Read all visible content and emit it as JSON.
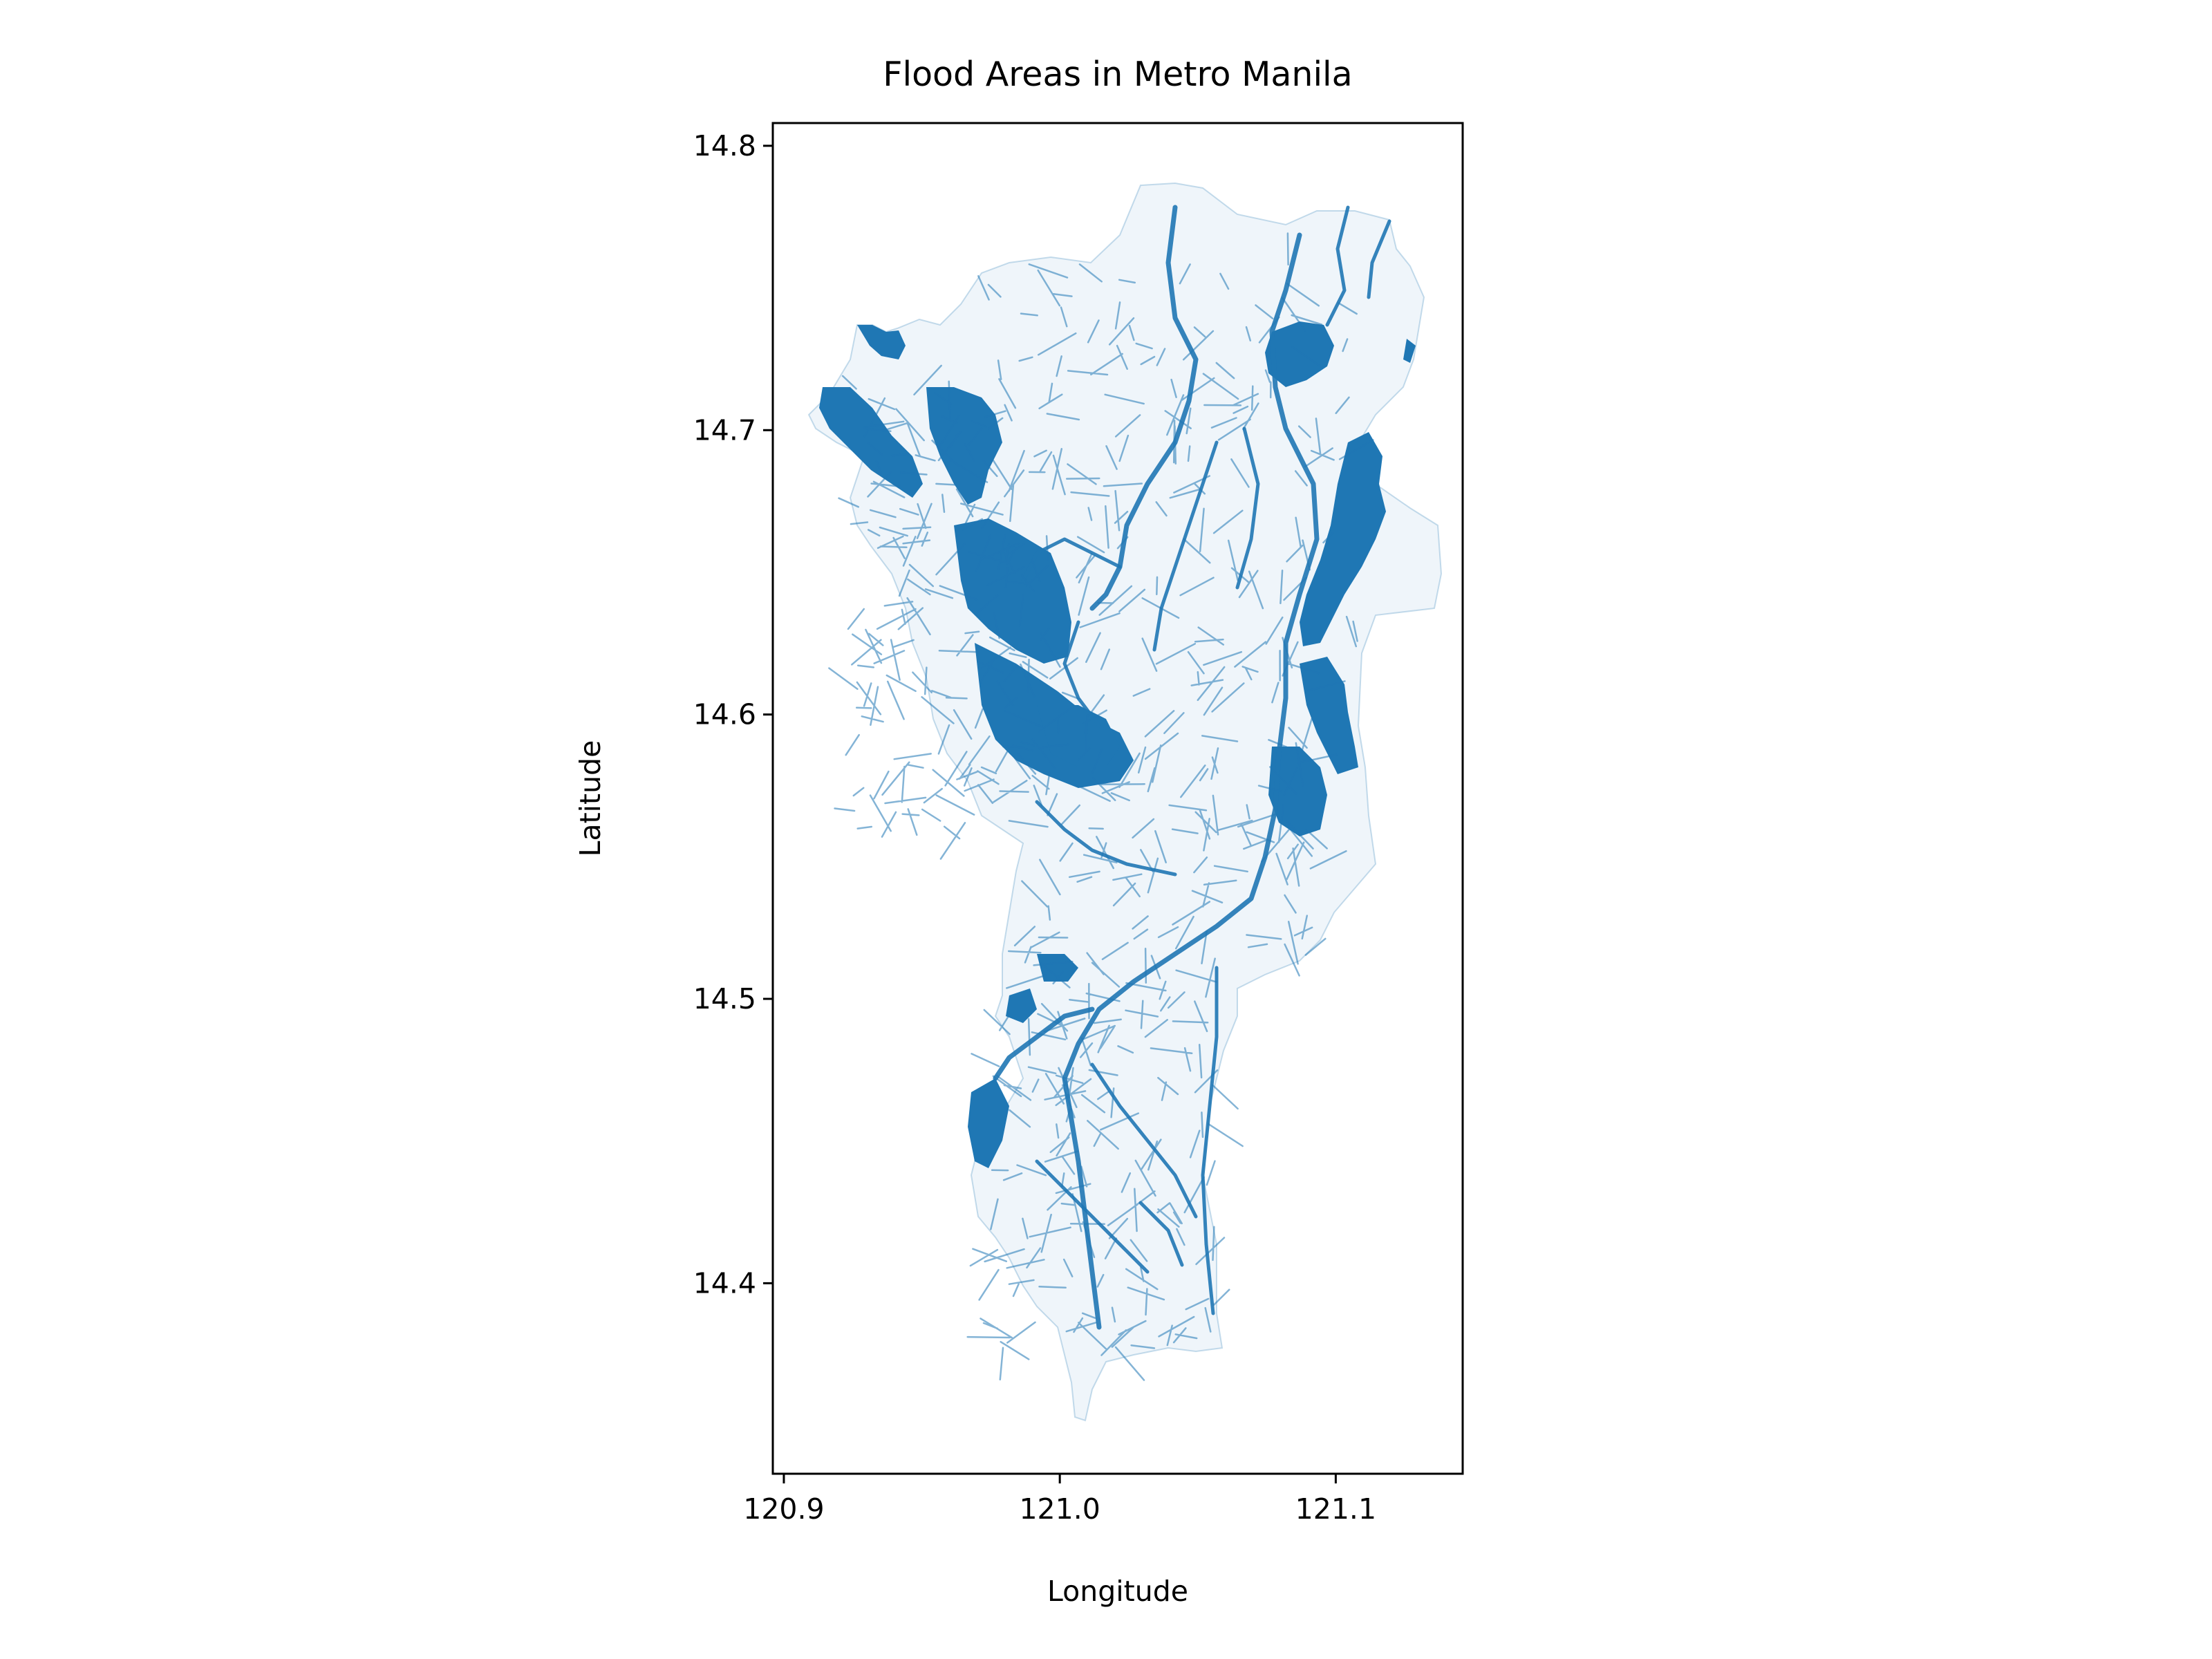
{
  "chart_data": {
    "type": "map",
    "title": "Flood Areas in Metro Manila",
    "xlabel": "Longitude",
    "ylabel": "Latitude",
    "xlim": [
      120.896,
      121.146
    ],
    "ylim": [
      14.333,
      14.808
    ],
    "xticks": [
      {
        "value": 120.9,
        "label": "120.9"
      },
      {
        "value": 121.0,
        "label": "121.0"
      },
      {
        "value": 121.1,
        "label": "121.1"
      }
    ],
    "yticks": [
      {
        "value": 14.4,
        "label": "14.4"
      },
      {
        "value": 14.5,
        "label": "14.5"
      },
      {
        "value": 14.6,
        "label": "14.6"
      },
      {
        "value": 14.7,
        "label": "14.7"
      },
      {
        "value": 14.8,
        "label": "14.8"
      }
    ],
    "grid": false,
    "legend": "none",
    "fill_color": "#1f77b4"
  },
  "colors": {
    "flood": "#1f77b4",
    "axes": "#000000",
    "background": "#ffffff"
  }
}
